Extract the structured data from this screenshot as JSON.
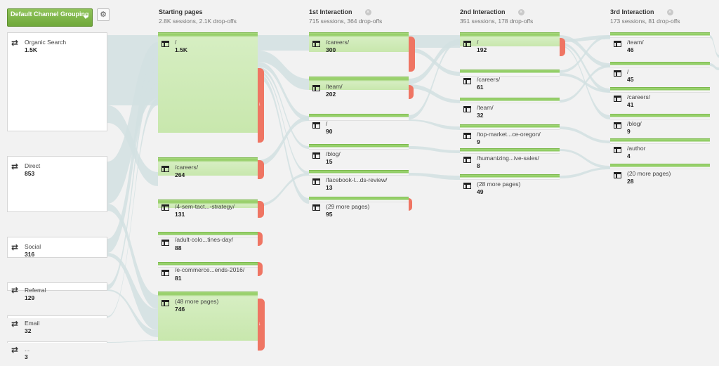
{
  "dimension": {
    "label": "Default Channel Grouping"
  },
  "columns": [
    {
      "title": "Starting pages",
      "sub": "2.8K sessions, 2.1K drop-offs"
    },
    {
      "title": "1st Interaction",
      "sub": "715 sessions, 364 drop-offs"
    },
    {
      "title": "2nd Interaction",
      "sub": "351 sessions, 178 drop-offs"
    },
    {
      "title": "3rd Interaction",
      "sub": "173 sessions, 81 drop-offs"
    }
  ],
  "sources": [
    {
      "label": "Organic Search",
      "value": "1.5K"
    },
    {
      "label": "Direct",
      "value": "853"
    },
    {
      "label": "Social",
      "value": "316"
    },
    {
      "label": "Referral",
      "value": "129"
    },
    {
      "label": "Email",
      "value": "32"
    },
    {
      "label": "...",
      "value": "3"
    }
  ],
  "starting_pages": [
    {
      "label": "/",
      "value": "1.5K"
    },
    {
      "label": "/careers/",
      "value": "264"
    },
    {
      "label": "/4-sem-tact...-strategy/",
      "value": "131"
    },
    {
      "label": "/adult-colo...tines-day/",
      "value": "88"
    },
    {
      "label": "/e-commerce...ends-2016/",
      "value": "81"
    },
    {
      "label": "(48 more pages)",
      "value": "746"
    }
  ],
  "interaction_1": [
    {
      "label": "/careers/",
      "value": "300"
    },
    {
      "label": "/team/",
      "value": "202"
    },
    {
      "label": "/",
      "value": "90"
    },
    {
      "label": "/blog/",
      "value": "15"
    },
    {
      "label": "/facebook-l...ds-review/",
      "value": "13"
    },
    {
      "label": "(29 more pages)",
      "value": "95"
    }
  ],
  "interaction_2": [
    {
      "label": "/",
      "value": "192"
    },
    {
      "label": "/careers/",
      "value": "61"
    },
    {
      "label": "/team/",
      "value": "32"
    },
    {
      "label": "/top-market...ce-oregon/",
      "value": "9"
    },
    {
      "label": "/humanizing...ive-sales/",
      "value": "8"
    },
    {
      "label": "(28 more pages)",
      "value": "49"
    }
  ],
  "interaction_3": [
    {
      "label": "/team/",
      "value": "46"
    },
    {
      "label": "/",
      "value": "45"
    },
    {
      "label": "/careers/",
      "value": "41"
    },
    {
      "label": "/blog/",
      "value": "9"
    },
    {
      "label": "/author",
      "value": "4"
    },
    {
      "label": "(20 more pages)",
      "value": "28"
    }
  ],
  "colors": {
    "node_green": "#92cc63",
    "drop_red": "#ef7563",
    "flow": "#d2e0e2",
    "background": "#f2f2f2"
  }
}
